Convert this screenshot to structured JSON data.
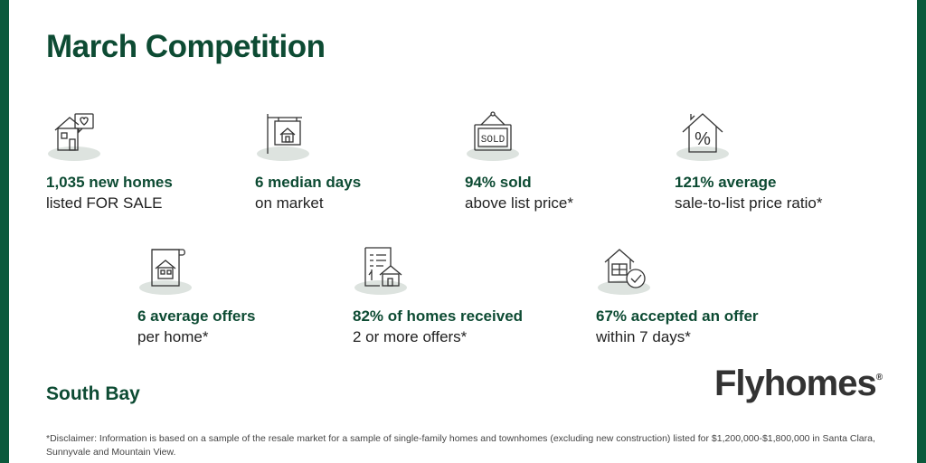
{
  "title": "March Competition",
  "stats": [
    {
      "bold": "1,035 new homes",
      "sub": "listed FOR SALE",
      "icon": "house-heart-icon"
    },
    {
      "bold": "6 median days",
      "sub": "on market",
      "icon": "signpost-house-icon"
    },
    {
      "bold": "94% sold",
      "sub": "above list price*",
      "icon": "sold-sign-icon",
      "sign_text": "SOLD"
    },
    {
      "bold": "121% average",
      "sub": "sale-to-list price ratio*",
      "icon": "house-percent-icon",
      "icon_text": "%"
    },
    {
      "bold": "6 average offers",
      "sub": "per home*",
      "icon": "house-document-icon"
    },
    {
      "bold": "82% of homes received",
      "sub": "2 or more offers*",
      "icon": "receipt-house-icon"
    },
    {
      "bold": "67% accepted an offer",
      "sub": "within 7 days*",
      "icon": "house-check-icon"
    }
  ],
  "region": "South Bay",
  "brand": {
    "name": "Flyhomes",
    "registered": "®"
  },
  "disclaimer": "*Disclaimer: Information is based on a sample of the resale market for a sample of single-family homes and townhomes (excluding new construction) listed for $1,200,000-$1,800,000 in Santa Clara, Sunnyvale and Mountain View.",
  "colors": {
    "brand_green": "#0b5a3c",
    "heading_green": "#0d4b33",
    "icon_shadow": "#dde3df"
  }
}
